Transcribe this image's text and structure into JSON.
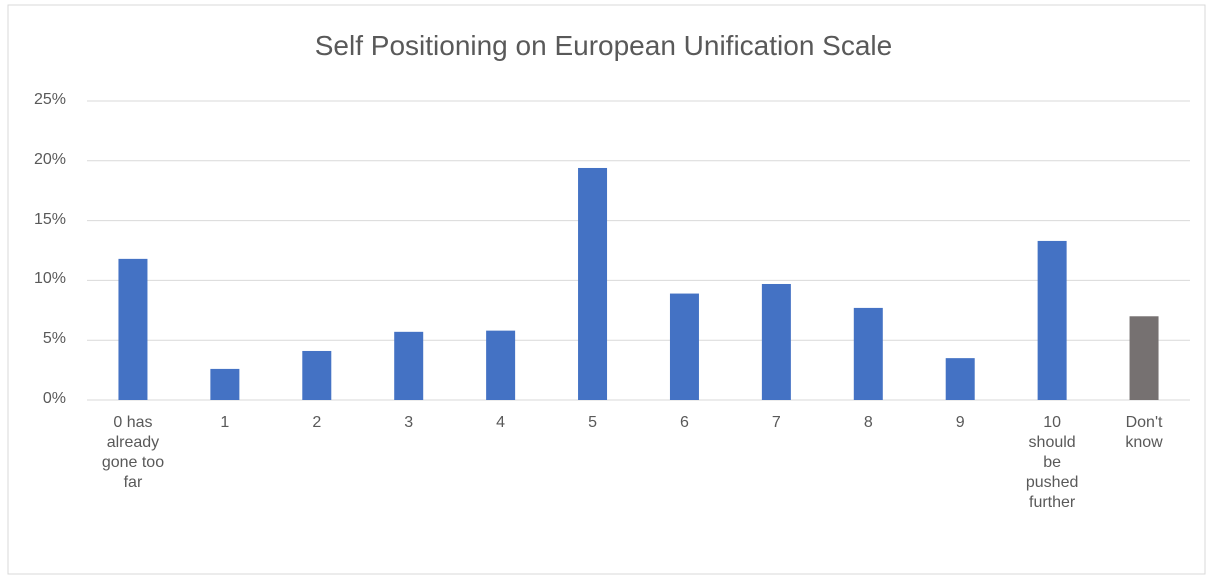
{
  "chart_data": {
    "type": "bar",
    "title": "Self Positioning on European Unification Scale",
    "categories": [
      "0 has already gone too far",
      "1",
      "2",
      "3",
      "4",
      "5",
      "6",
      "7",
      "8",
      "9",
      "10 should be pushed further",
      "Don't know"
    ],
    "values": [
      11.8,
      2.6,
      4.1,
      5.7,
      5.8,
      19.4,
      8.9,
      9.7,
      7.7,
      3.5,
      13.3,
      7.0
    ],
    "colors": [
      "#4472c4",
      "#4472c4",
      "#4472c4",
      "#4472c4",
      "#4472c4",
      "#4472c4",
      "#4472c4",
      "#4472c4",
      "#4472c4",
      "#4472c4",
      "#4472c4",
      "#767171"
    ],
    "ylim": [
      0,
      25
    ],
    "yticks": [
      {
        "value": 0,
        "label": "0%"
      },
      {
        "value": 5,
        "label": "5%"
      },
      {
        "value": 10,
        "label": "10%"
      },
      {
        "value": 15,
        "label": "15%"
      },
      {
        "value": 20,
        "label": "20%"
      },
      {
        "value": 25,
        "label": "25%"
      }
    ],
    "grid": true
  }
}
